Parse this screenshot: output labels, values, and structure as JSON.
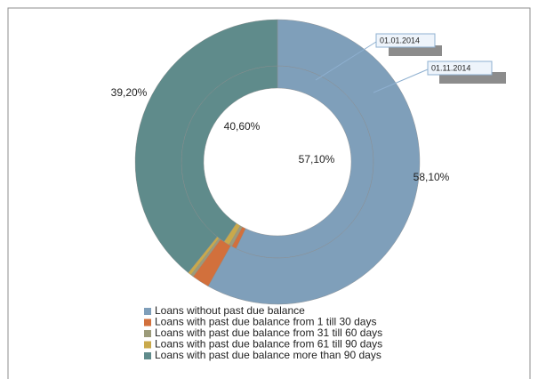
{
  "chart_data": {
    "type": "doughnut",
    "categories": [
      "Loans without past due balance",
      "Loans with past due balance from 1 till 30 days",
      "Loans with past due balance from 31 till 60 days",
      "Loans with past due balance from 61 till 90 days",
      "Loans with past due balance more than 90 days"
    ],
    "colors": [
      "#7f9fba",
      "#d2703c",
      "#9c9b7a",
      "#c9a94b",
      "#5f8b8b"
    ],
    "series": [
      {
        "name": "01.01.2014",
        "values": [
          57.1,
          0.8,
          0.5,
          1.0,
          40.6
        ],
        "value_labels": [
          "57,10%",
          null,
          null,
          null,
          "40,60%"
        ]
      },
      {
        "name": "01.11.2014",
        "values": [
          58.1,
          2.0,
          0.3,
          0.4,
          39.2
        ],
        "value_labels": [
          "58,10%",
          null,
          null,
          null,
          "39,20%"
        ]
      }
    ]
  }
}
